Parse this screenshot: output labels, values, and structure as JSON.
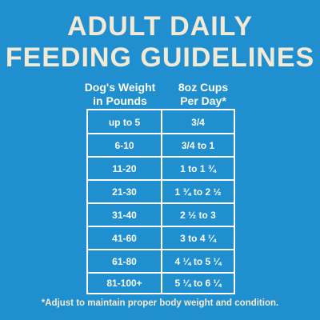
{
  "title": {
    "line1": "ADULT DAILY",
    "line2": "FEEDING GUIDELINES"
  },
  "table": {
    "headers": [
      {
        "line1": "Dog's Weight",
        "line2": "in Pounds"
      },
      {
        "line1": "8oz Cups",
        "line2": "Per Day*"
      }
    ],
    "rows": [
      {
        "weight": "up to 5",
        "cups": "3/4"
      },
      {
        "weight": "6-10",
        "cups": "3/4 to 1"
      },
      {
        "weight": "11-20",
        "cups": "1 to 1 ¾"
      },
      {
        "weight": "21-30",
        "cups": "1 ¾ to 2 ½"
      },
      {
        "weight": "31-40",
        "cups": "2 ½ to 3"
      },
      {
        "weight": "41-60",
        "cups": "3 to 4 ¼"
      },
      {
        "weight": "61-80",
        "cups": "4 ¼ to 5 ¼"
      },
      {
        "weight": "81-100+",
        "cups": "5 ¼ to 6 ¼"
      }
    ]
  },
  "footnote": "*Adjust to maintain proper body weight and condition.",
  "colors": {
    "background": "#1f8fd0",
    "title": "#f3ead6",
    "text": "#ffffff"
  }
}
